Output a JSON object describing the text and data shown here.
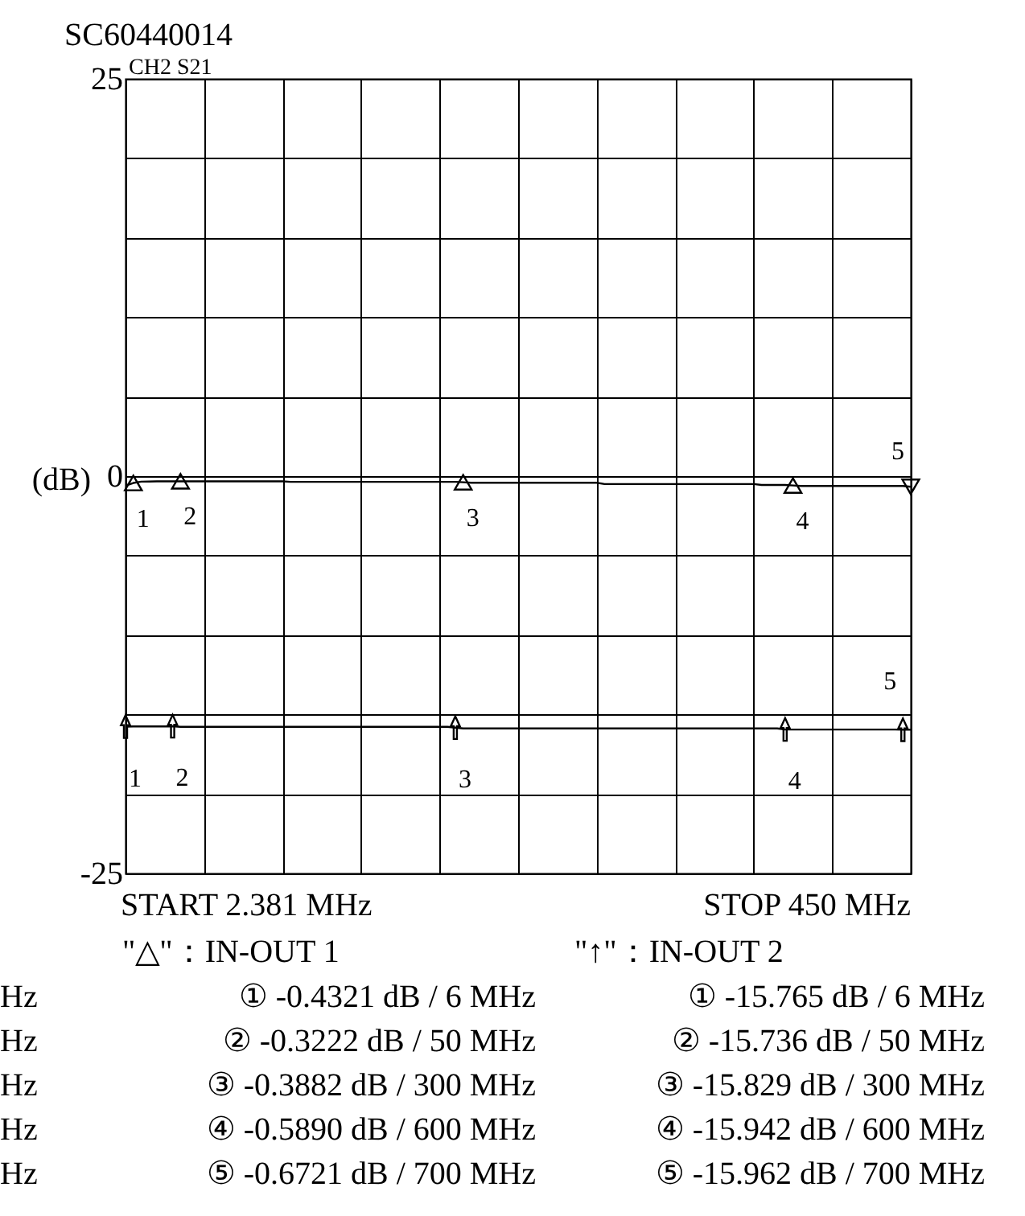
{
  "chart_data": {
    "type": "line",
    "title": "SC60440014",
    "ylabel": "(dB)",
    "categories": [
      null,
      null,
      null,
      null,
      null,
      null,
      null,
      null,
      null,
      null,
      null,
      null,
      null,
      null,
      null,
      null,
      null,
      null,
      null,
      null,
      null,
      null,
      null,
      null,
      null,
      null,
      null,
      null,
      null,
      null,
      null,
      null,
      null,
      null,
      null,
      null,
      null,
      null,
      null,
      null,
      null,
      null,
      null,
      null,
      null,
      null,
      null,
      null,
      null,
      null,
      null,
      null,
      null,
      null,
      null,
      null,
      null,
      null,
      null,
      null,
      null,
      null,
      null,
      null,
      null,
      null,
      null,
      null,
      null,
      null,
      null,
      null,
      null,
      null,
      null,
      null,
      null,
      null,
      null,
      null,
      null,
      null,
      null,
      null,
      null,
      null,
      null,
      null,
      null,
      null,
      null,
      null,
      null,
      null,
      null,
      null,
      null,
      null,
      null,
      null,
      null
    ],
    "ylim": [
      -25,
      25
    ],
    "yticks": [
      -25,
      {
        "value": -20,
        "label": null
      },
      {
        "value": -15,
        "label": null
      },
      {
        "value": -10,
        "label": null
      },
      {
        "value": -5,
        "label": null
      },
      0,
      {
        "value": 5,
        "label": null
      },
      {
        "value": 10,
        "label": null
      },
      {
        "value": 15,
        "label": null
      },
      {
        "value": 20,
        "label": null
      },
      25
    ],
    "grid": true,
    "series": [
      {
        "type": "line",
        "color": "#000000",
        "values": [
          -0.6,
          -0.4321,
          -0.35,
          -0.34,
          -0.33,
          -0.33,
          -0.33,
          -0.3222,
          -0.33,
          -0.33,
          -0.33,
          -0.33,
          -0.33,
          -0.33,
          -0.33,
          -0.33,
          -0.33,
          -0.33,
          -0.33,
          -0.33,
          -0.33,
          -0.36,
          -0.36,
          -0.36,
          -0.36,
          -0.36,
          -0.36,
          -0.36,
          -0.36,
          -0.36,
          -0.36,
          -0.36,
          -0.36,
          -0.36,
          -0.36,
          -0.36,
          -0.36,
          -0.36,
          -0.36,
          -0.36,
          -0.36,
          -0.36,
          -0.36,
          -0.3882,
          -0.42,
          -0.42,
          -0.42,
          -0.42,
          -0.42,
          -0.42,
          -0.42,
          -0.42,
          -0.42,
          -0.42,
          -0.42,
          -0.42,
          -0.42,
          -0.42,
          -0.42,
          -0.42,
          -0.42,
          -0.5,
          -0.5,
          -0.5,
          -0.5,
          -0.5,
          -0.5,
          -0.5,
          -0.5,
          -0.5,
          -0.5,
          -0.5,
          -0.5,
          -0.5,
          -0.5,
          -0.5,
          -0.5,
          -0.5,
          -0.5,
          -0.5,
          -0.5,
          -0.56,
          -0.56,
          -0.56,
          -0.56,
          -0.589,
          -0.62,
          -0.62,
          -0.62,
          -0.62,
          -0.62,
          -0.62,
          -0.62,
          -0.62,
          -0.62,
          -0.62,
          -0.62,
          -0.62,
          -0.62,
          -0.62,
          -0.6721
        ]
      },
      {
        "type": "line",
        "color": "#000000",
        "values": [
          -15.765,
          -15.75,
          -15.75,
          -15.75,
          -15.75,
          -15.75,
          -15.736,
          -15.78,
          -15.78,
          -15.78,
          -15.78,
          -15.78,
          -15.78,
          -15.78,
          -15.78,
          -15.78,
          -15.78,
          -15.78,
          -15.78,
          -15.78,
          -15.78,
          -15.78,
          -15.78,
          -15.78,
          -15.78,
          -15.78,
          -15.78,
          -15.78,
          -15.78,
          -15.78,
          -15.78,
          -15.78,
          -15.78,
          -15.78,
          -15.78,
          -15.78,
          -15.78,
          -15.78,
          -15.78,
          -15.78,
          -15.78,
          -15.78,
          -15.829,
          -15.88,
          -15.88,
          -15.88,
          -15.88,
          -15.88,
          -15.88,
          -15.88,
          -15.88,
          -15.88,
          -15.88,
          -15.88,
          -15.88,
          -15.88,
          -15.88,
          -15.88,
          -15.88,
          -15.88,
          -15.88,
          -15.88,
          -15.88,
          -15.88,
          -15.88,
          -15.88,
          -15.88,
          -15.88,
          -15.88,
          -15.88,
          -15.88,
          -15.88,
          -15.88,
          -15.88,
          -15.88,
          -15.88,
          -15.88,
          -15.88,
          -15.88,
          -15.88,
          -15.88,
          -15.88,
          -15.88,
          -15.88,
          -15.942,
          -15.95,
          -15.95,
          -15.95,
          -15.95,
          -15.95,
          -15.95,
          -15.95,
          -15.95,
          -15.95,
          -15.95,
          -15.95,
          -15.95,
          -15.95,
          -15.95,
          -15.962,
          -15.962
        ]
      },
      {
        "type": "scatter",
        "marker": "triangle",
        "color": "#000000",
        "values": [
          null,
          -0.4321,
          null,
          null,
          null,
          null,
          null,
          -0.3222,
          null,
          null,
          null,
          null,
          null,
          null,
          null,
          null,
          null,
          null,
          null,
          null,
          null,
          null,
          null,
          null,
          null,
          null,
          null,
          null,
          null,
          null,
          null,
          null,
          null,
          null,
          null,
          null,
          null,
          null,
          null,
          null,
          null,
          null,
          null,
          -0.3882,
          null,
          null,
          null,
          null,
          null,
          null,
          null,
          null,
          null,
          null,
          null,
          null,
          null,
          null,
          null,
          null,
          null,
          null,
          null,
          null,
          null,
          null,
          null,
          null,
          null,
          null,
          null,
          null,
          null,
          null,
          null,
          null,
          null,
          null,
          null,
          null,
          null,
          null,
          null,
          null,
          null,
          -0.589,
          null,
          null,
          null,
          null,
          null,
          null,
          null,
          null,
          null,
          null,
          null,
          null,
          null,
          null,
          -0.6721
        ]
      },
      {
        "type": "scatter",
        "marker": "triangle",
        "color": "#000000",
        "values": [
          -15.765,
          null,
          null,
          null,
          null,
          null,
          -15.736,
          null,
          null,
          null,
          null,
          null,
          null,
          null,
          null,
          null,
          null,
          null,
          null,
          null,
          null,
          null,
          null,
          null,
          null,
          null,
          null,
          null,
          null,
          null,
          null,
          null,
          null,
          null,
          null,
          null,
          null,
          null,
          null,
          null,
          null,
          null,
          -15.829,
          null,
          null,
          null,
          null,
          null,
          null,
          null,
          null,
          null,
          null,
          null,
          null,
          null,
          null,
          null,
          null,
          null,
          null,
          null,
          null,
          null,
          null,
          null,
          null,
          null,
          null,
          null,
          null,
          null,
          null,
          null,
          null,
          null,
          null,
          null,
          null,
          null,
          null,
          null,
          null,
          null,
          -15.942,
          null,
          null,
          null,
          null,
          null,
          null,
          null,
          null,
          null,
          null,
          null,
          null,
          null,
          null,
          -15.962,
          null
        ]
      }
    ],
    "annotations": [
      "1",
      "2",
      "3",
      "4",
      "5",
      "1",
      "2",
      "3",
      "4",
      "5",
      "CH2  S21",
      "START 2.381 MHz",
      "STOP 450 MHz",
      "\"△\"：IN-OUT 1",
      "\"↑\"：IN-OUT 2",
      "Hz",
      "① -0.4321 dB /     6 MHz",
      "① -15.765 dB /     6 MHz",
      "Hz",
      "② -0.3222 dB /   50 MHz",
      "② -15.736 dB /   50 MHz",
      "Hz",
      "③ -0.3882 dB / 300 MHz",
      "③ -15.829 dB / 300 MHz",
      "Hz",
      "④ -0.5890 dB / 600 MHz",
      "④ -15.942 dB / 600 MHz",
      "Hz",
      "⑤ -0.6721 dB / 700 MHz",
      "⑤ -15.962 dB / 700 MHz"
    ]
  }
}
